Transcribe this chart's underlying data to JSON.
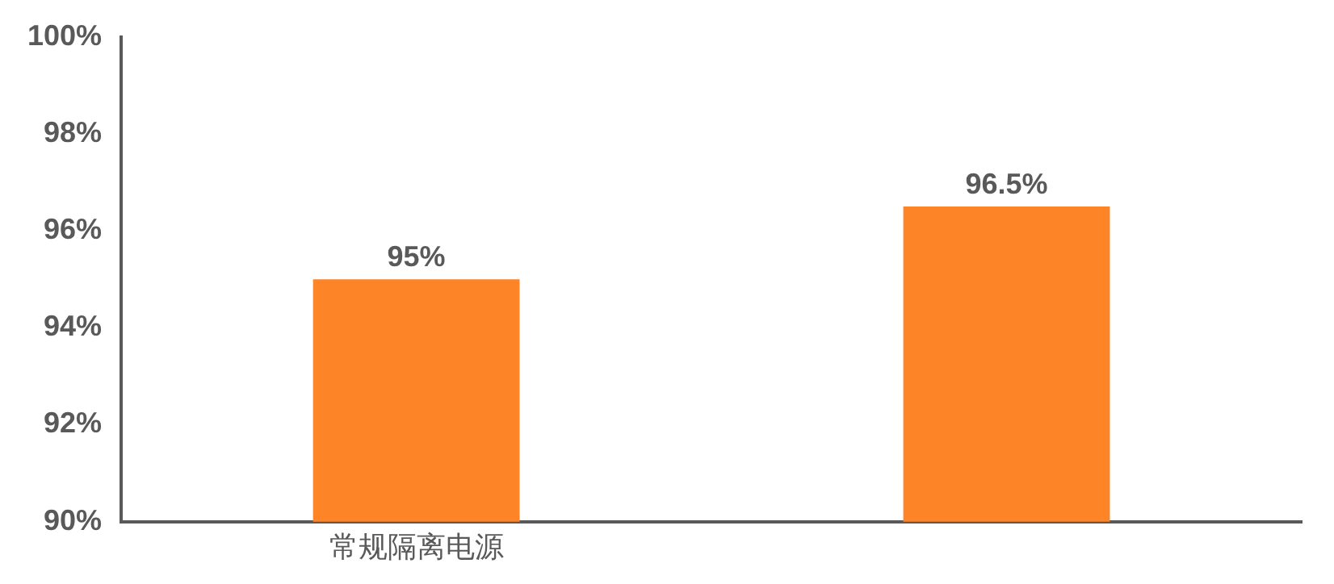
{
  "chart_data": {
    "type": "bar",
    "categories": [
      "常规隔离电源",
      null
    ],
    "values": [
      95,
      96.5
    ],
    "color": "#fd8427",
    "value_labels": [
      "95%",
      "96.5%"
    ],
    "ylim": [
      90,
      100
    ],
    "yticks": [
      {
        "value": 90,
        "label": "90%"
      },
      {
        "value": 92,
        "label": "92%"
      },
      {
        "value": 94,
        "label": "94%"
      },
      {
        "value": 96,
        "label": "96%"
      },
      {
        "value": 98,
        "label": "98%"
      },
      {
        "value": 100,
        "label": "100%"
      }
    ],
    "grid": false,
    "legend": false
  }
}
